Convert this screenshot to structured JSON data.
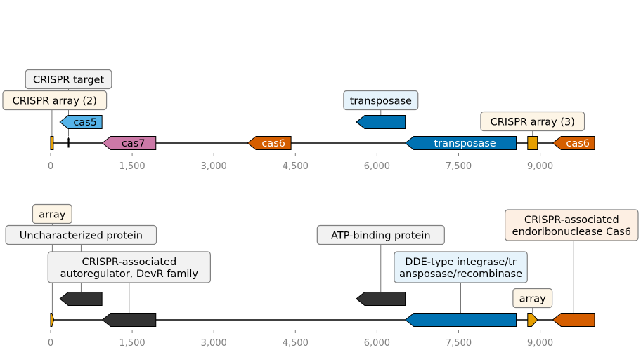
{
  "colors": {
    "track_line": "#000000",
    "tick_text": "#808080",
    "callout_border": "#808080"
  },
  "tracks": [
    {
      "name": "top",
      "axis_range": [
        0,
        10000
      ],
      "ticks": [
        {
          "value": 0,
          "label": "0"
        },
        {
          "value": 1500,
          "label": "1,500"
        },
        {
          "value": 3000,
          "label": "3,000"
        },
        {
          "value": 4500,
          "label": "4,500"
        },
        {
          "value": 6000,
          "label": "6,000"
        },
        {
          "value": 7500,
          "label": "7,500"
        },
        {
          "value": 9000,
          "label": "9,000"
        }
      ],
      "features": [
        {
          "id": "crispr-array-2",
          "kind": "box",
          "start": 0,
          "end": 50,
          "row": 0,
          "fill": "#e69f00",
          "label": ""
        },
        {
          "id": "crispr-target",
          "kind": "marker",
          "start": 330,
          "end": 330,
          "row": 0,
          "fill": "#000000",
          "label": ""
        },
        {
          "id": "cas5",
          "kind": "arrow",
          "strand": -1,
          "start": 170,
          "end": 945,
          "row": 1,
          "fill": "#56b4e9",
          "label": "cas5",
          "label_color": "#000000"
        },
        {
          "id": "cas7",
          "kind": "arrow",
          "strand": -1,
          "start": 950,
          "end": 1935,
          "row": 0,
          "fill": "#cc79a7",
          "label": "cas7",
          "label_color": "#000000"
        },
        {
          "id": "cas6-a",
          "kind": "arrow",
          "strand": -1,
          "start": 3620,
          "end": 4420,
          "row": 0,
          "fill": "#d55e00",
          "label": "cas6",
          "label_color": "#ffffff"
        },
        {
          "id": "transposase-a",
          "kind": "arrow",
          "strand": -1,
          "start": 5620,
          "end": 6520,
          "row": 1,
          "fill": "#0072b2",
          "label": "",
          "label_color": "#ffffff"
        },
        {
          "id": "transposase-b",
          "kind": "arrow",
          "strand": -1,
          "start": 6520,
          "end": 8560,
          "row": 0,
          "fill": "#0072b2",
          "label": "transposase",
          "label_color": "#ffffff"
        },
        {
          "id": "crispr-array-3",
          "kind": "box",
          "start": 8770,
          "end": 8950,
          "row": 0,
          "fill": "#e69f00",
          "label": ""
        },
        {
          "id": "cas6-b",
          "kind": "arrow",
          "strand": -1,
          "start": 9230,
          "end": 10000,
          "row": 0,
          "fill": "#d55e00",
          "label": "cas6",
          "label_color": "#ffffff"
        }
      ],
      "callouts": [
        {
          "target": "crispr-target",
          "anchor": 330,
          "lines": [
            "CRISPR target"
          ],
          "bg": "#f2f2f2"
        },
        {
          "target": "crispr-array-2",
          "anchor": 25,
          "lines": [
            "CRISPR array (2)"
          ],
          "bg": "#fdf5e6"
        },
        {
          "target": "transposase-a",
          "anchor": 6070,
          "lines": [
            "transposase"
          ],
          "bg": "#e6f3fb"
        },
        {
          "target": "crispr-array-3",
          "anchor": 8860,
          "lines": [
            "CRISPR array (3)"
          ],
          "bg": "#fdf5e6"
        }
      ]
    },
    {
      "name": "bottom",
      "axis_range": [
        0,
        10000
      ],
      "ticks": [
        {
          "value": 0,
          "label": "0"
        },
        {
          "value": 1500,
          "label": "1,500"
        },
        {
          "value": 3000,
          "label": "3,000"
        },
        {
          "value": 4500,
          "label": "4,500"
        },
        {
          "value": 6000,
          "label": "6,000"
        },
        {
          "value": 7500,
          "label": "7,500"
        },
        {
          "value": 9000,
          "label": "9,000"
        }
      ],
      "features": [
        {
          "id": "array-small",
          "kind": "arrow",
          "strand": 1,
          "start": 0,
          "end": 60,
          "row": 0,
          "fill": "#e69f00",
          "label": ""
        },
        {
          "id": "uncharacterized",
          "kind": "arrow",
          "strand": -1,
          "start": 170,
          "end": 945,
          "row": 1,
          "fill": "#333333",
          "label": ""
        },
        {
          "id": "devr",
          "kind": "arrow",
          "strand": -1,
          "start": 950,
          "end": 1935,
          "row": 0,
          "fill": "#333333",
          "label": ""
        },
        {
          "id": "atp-binding",
          "kind": "arrow",
          "strand": -1,
          "start": 5620,
          "end": 6520,
          "row": 1,
          "fill": "#333333",
          "label": ""
        },
        {
          "id": "dde-integrase",
          "kind": "arrow",
          "strand": -1,
          "start": 6520,
          "end": 8560,
          "row": 0,
          "fill": "#0072b2",
          "label": ""
        },
        {
          "id": "array-2",
          "kind": "arrow",
          "strand": 1,
          "start": 8770,
          "end": 8950,
          "row": 0,
          "fill": "#e69f00",
          "label": ""
        },
        {
          "id": "cas6-endo",
          "kind": "arrow",
          "strand": -1,
          "start": 9230,
          "end": 10000,
          "row": 0,
          "fill": "#d55e00",
          "label": ""
        }
      ],
      "callouts": [
        {
          "target": "array-small",
          "anchor": 30,
          "lines": [
            "array"
          ],
          "bg": "#fdf5e6"
        },
        {
          "target": "uncharacterized",
          "anchor": 560,
          "lines": [
            "Uncharacterized protein "
          ],
          "bg": "#f2f2f2"
        },
        {
          "target": "devr",
          "anchor": 1445,
          "lines": [
            "CRISPR-associated",
            "autoregulator, DevR family"
          ],
          "bg": "#f2f2f2"
        },
        {
          "target": "atp-binding",
          "anchor": 6070,
          "lines": [
            "ATP-binding protein "
          ],
          "bg": "#f2f2f2"
        },
        {
          "target": "dde-integrase",
          "anchor": 7540,
          "lines": [
            "DDE-type integrase/tr",
            "ansposase/recombinase"
          ],
          "bg": "#e6f3fb"
        },
        {
          "target": "array-2",
          "anchor": 8860,
          "lines": [
            "array"
          ],
          "bg": "#fdf5e6"
        },
        {
          "target": "cas6-endo",
          "anchor": 9615,
          "lines": [
            "CRISPR-associated",
            "endoribonuclease Cas6"
          ],
          "bg": "#fdefe3"
        }
      ]
    }
  ]
}
